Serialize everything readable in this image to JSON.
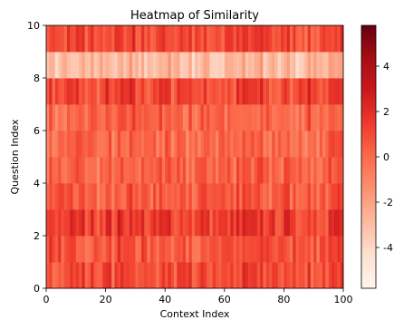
{
  "chart_data": {
    "type": "heatmap",
    "title": "Heatmap of Similarity",
    "xlabel": "Context Index",
    "ylabel": "Question Index",
    "xlim": [
      0,
      100
    ],
    "ylim": [
      0,
      10
    ],
    "x_ticks": [
      "0",
      "20",
      "40",
      "60",
      "80",
      "100"
    ],
    "y_ticks": [
      "0",
      "2",
      "4",
      "6",
      "8",
      "10"
    ],
    "n_columns": 100,
    "n_rows": 10,
    "row_mean_values": [
      0.9,
      0.6,
      1.4,
      0.4,
      0.2,
      0.0,
      0.1,
      1.1,
      -2.9,
      1.0
    ],
    "colorbar": {
      "colormap": "Reds",
      "range": [
        -5.8,
        5.8
      ],
      "ticks": [
        "4",
        "2",
        "0",
        "-2",
        "-4"
      ],
      "tick_values": [
        4,
        2,
        0,
        -2,
        -4
      ]
    }
  }
}
